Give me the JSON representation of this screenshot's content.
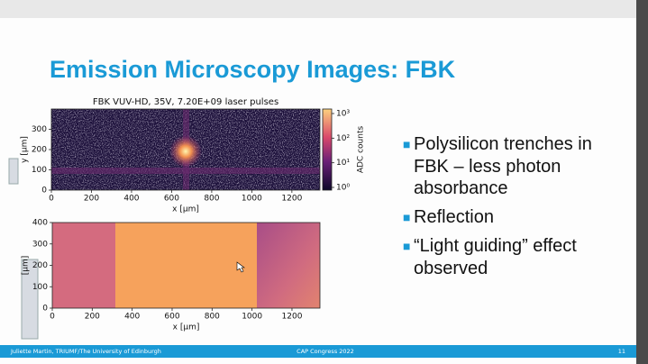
{
  "slide": {
    "title": "Emission Microscopy Images: FBK",
    "plots": [
      {
        "title": "FBK VUV-HD, 35V, 7.20E+09 laser pulses",
        "xlabel": "x [μm]",
        "ylabel": "y [μm]",
        "xlim": [
          0,
          1340
        ],
        "ylim": [
          0,
          400
        ],
        "xticks": [
          0,
          200,
          400,
          600,
          800,
          1000,
          1200
        ],
        "yticks": [
          0,
          100,
          200,
          300
        ],
        "colorbar": {
          "label": "ADC counts",
          "log": true,
          "lim": [
            1,
            1000
          ],
          "ticks": [
            {
              "value": 1,
              "label": "10⁰"
            },
            {
              "value": 10,
              "label": "10¹"
            },
            {
              "value": 100,
              "label": "10²"
            },
            {
              "value": 1000,
              "label": "10³"
            }
          ]
        }
      },
      {
        "xlabel": "x [μm]",
        "ylabel": "[μm]",
        "xlim": [
          0,
          1340
        ],
        "ylim": [
          0,
          400
        ],
        "xticks": [
          0,
          200,
          400,
          600,
          800,
          1000,
          1200
        ],
        "yticks": [
          0,
          100,
          200,
          300,
          400
        ]
      }
    ],
    "bullets": [
      "Polysilicon trenches in FBK – less photon absorbance",
      "Reflection",
      "“Light guiding” effect observed"
    ],
    "footer": {
      "author": "Juliette Martin, TRIUMF/The University of Edinburgh",
      "event": "CAP Congress 2022",
      "page": "11"
    }
  }
}
